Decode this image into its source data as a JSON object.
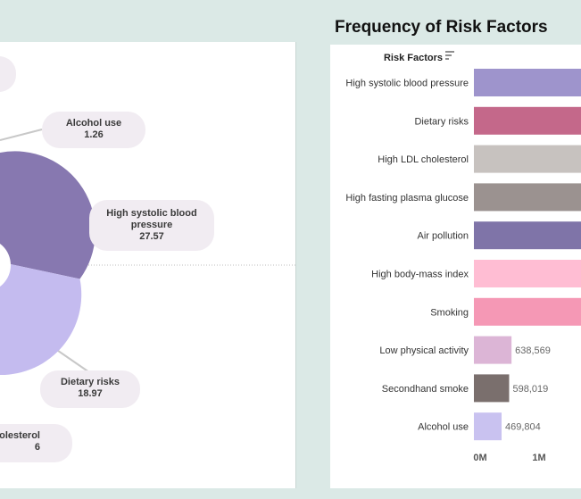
{
  "left_chart": {
    "callouts": [
      {
        "name": "Alcohol use",
        "value": "1.26"
      },
      {
        "name": "High systolic blood pressure",
        "value": "27.57"
      },
      {
        "name": "Dietary risks",
        "value": "18.97"
      },
      {
        "name": "olesterol",
        "value": "6"
      }
    ]
  },
  "right_chart": {
    "title": "Frequency of Risk Factors",
    "axis_header": "Risk Factors",
    "sort_icon": "sort-icon"
  },
  "colors": {
    "High systolic blood pressure": "#9e94cc",
    "Dietary risks": "#c4688a",
    "High LDL cholesterol": "#c7c2bf",
    "High fasting plasma glucose": "#9b9290",
    "Air pollution": "#7f74a8",
    "High body-mass index": "#ffbdd3",
    "Smoking": "#f598b5",
    "Low physical activity": "#dcb5d6",
    "Secondhand smoke": "#7a6f6d",
    "Alcohol use": "#c9c2f0",
    "donut_dark": "#8778b0",
    "donut_light": "#c4bbef"
  },
  "chart_data": [
    {
      "type": "pie",
      "slices": [
        {
          "label": "Alcohol use",
          "value": 1.26
        },
        {
          "label": "High systolic blood pressure",
          "value": 27.57
        },
        {
          "label": "Dietary risks",
          "value": 18.97
        },
        {
          "label": "High LDL cholesterol",
          "value": 6
        }
      ]
    },
    {
      "type": "bar",
      "title": "Frequency of Risk Factors",
      "ylabel": "Risk Factors",
      "categories": [
        "High systolic blood pressure",
        "Dietary risks",
        "High LDL cholesterol",
        "High fasting plasma glucose",
        "Air pollution",
        "High body-mass index",
        "Smoking",
        "Low physical activity",
        "Secondhand smoke",
        "Alcohol use"
      ],
      "values": [
        null,
        null,
        null,
        null,
        null,
        null,
        null,
        638569,
        598019,
        469804
      ],
      "data_labels": [
        "",
        "",
        "",
        "",
        "",
        "",
        "",
        "638,569",
        "598,019",
        "469,804"
      ],
      "x_ticks": [
        "0M",
        "1M"
      ]
    }
  ]
}
